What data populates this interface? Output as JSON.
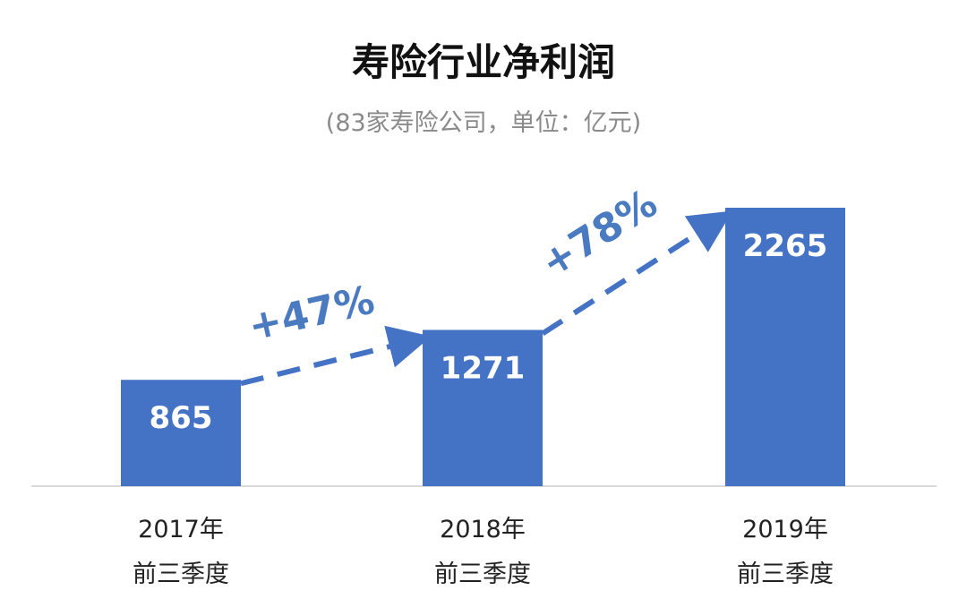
{
  "chart_data": {
    "type": "bar",
    "title": "寿险行业净利润",
    "subtitle": "(83家寿险公司，单位：亿元)",
    "categories": [
      [
        "2017年",
        "前三季度"
      ],
      [
        "2018年",
        "前三季度"
      ],
      [
        "2019年",
        "前三季度"
      ]
    ],
    "values": [
      865,
      1271,
      2265
    ],
    "data_labels": [
      "865",
      "1271",
      "2265"
    ],
    "annotations": [
      {
        "from": 0,
        "to": 1,
        "text": "+47%"
      },
      {
        "from": 1,
        "to": 2,
        "text": "+78%"
      }
    ],
    "ylim": [
      0,
      2300
    ],
    "bar_color": "#4472c4",
    "arrow_color": "#4472c4",
    "annotation_color": "#4a7bc0",
    "grid": false,
    "legend": "none"
  }
}
